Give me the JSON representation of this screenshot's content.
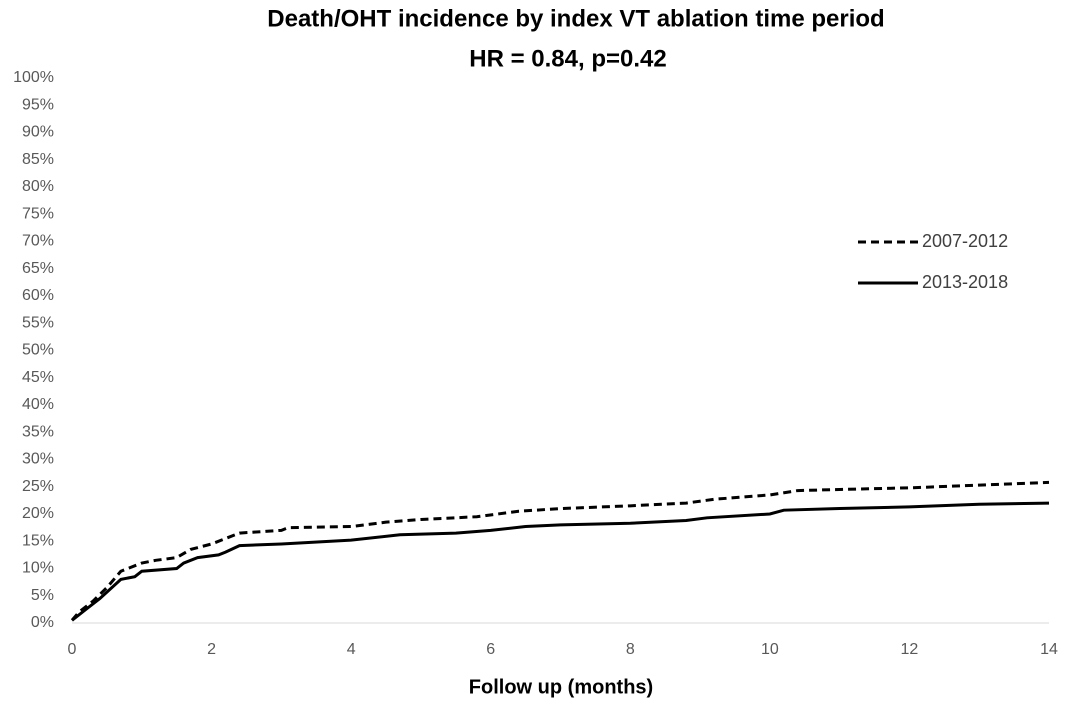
{
  "chart_data": {
    "type": "line",
    "title": "Death/OHT incidence by index VT ablation time period",
    "subtitle": "HR = 0.84, p=0.42",
    "x_label": "Follow up (months)",
    "xlim": [
      0,
      14
    ],
    "xticks": [
      0,
      2,
      4,
      6,
      8,
      10,
      12,
      14
    ],
    "ylim": [
      0,
      100
    ],
    "yticks": [
      {
        "value": 0,
        "label": "0%"
      },
      {
        "value": 5,
        "label": "5%"
      },
      {
        "value": 10,
        "label": "10%"
      },
      {
        "value": 15,
        "label": "15%"
      },
      {
        "value": 20,
        "label": "20%"
      },
      {
        "value": 25,
        "label": "25%"
      },
      {
        "value": 30,
        "label": "30%"
      },
      {
        "value": 35,
        "label": "35%"
      },
      {
        "value": 40,
        "label": "40%"
      },
      {
        "value": 45,
        "label": "45%"
      },
      {
        "value": 50,
        "label": "50%"
      },
      {
        "value": 55,
        "label": "55%"
      },
      {
        "value": 60,
        "label": "60%"
      },
      {
        "value": 65,
        "label": "65%"
      },
      {
        "value": 70,
        "label": "70%"
      },
      {
        "value": 75,
        "label": "75%"
      },
      {
        "value": 80,
        "label": "80%"
      },
      {
        "value": 85,
        "label": "85%"
      },
      {
        "value": 90,
        "label": "90%"
      },
      {
        "value": 95,
        "label": "95%"
      },
      {
        "value": 100,
        "label": "100%"
      }
    ],
    "grid": false,
    "legend": "right",
    "series": [
      {
        "name": "2007-2012",
        "color": "#000000",
        "dash": true,
        "x": [
          0,
          0.1,
          0.3,
          0.5,
          0.7,
          1.0,
          1.2,
          1.5,
          1.7,
          2.0,
          2.2,
          2.4,
          3.0,
          3.1,
          4.0,
          4.5,
          5.0,
          5.8,
          6.4,
          7,
          8,
          8.8,
          9.2,
          10,
          10.4,
          11,
          12,
          13,
          14
        ],
        "values": [
          0.5,
          2,
          4,
          6.5,
          9.5,
          11,
          11.5,
          12,
          13.5,
          14.5,
          15.5,
          16.5,
          17,
          17.5,
          17.7,
          18.5,
          19,
          19.5,
          20.5,
          21,
          21.5,
          22,
          22.7,
          23.5,
          24.3,
          24.5,
          24.8,
          25.3,
          25.8
        ]
      },
      {
        "name": "2013-2018",
        "color": "#000000",
        "dash": false,
        "x": [
          0,
          0.2,
          0.4,
          0.7,
          0.9,
          1.0,
          1.5,
          1.6,
          1.8,
          2.1,
          2.2,
          2.4,
          3.0,
          4.0,
          4.7,
          5.5,
          6.0,
          6.5,
          7,
          8,
          8.8,
          9.1,
          10,
          10.2,
          11,
          12,
          13,
          14
        ],
        "values": [
          0.5,
          2.5,
          4.5,
          8,
          8.5,
          9.5,
          10,
          11,
          12,
          12.5,
          13,
          14.2,
          14.5,
          15.2,
          16.2,
          16.5,
          17,
          17.7,
          18,
          18.3,
          18.8,
          19.3,
          20,
          20.7,
          21,
          21.3,
          21.8,
          22
        ]
      }
    ]
  }
}
